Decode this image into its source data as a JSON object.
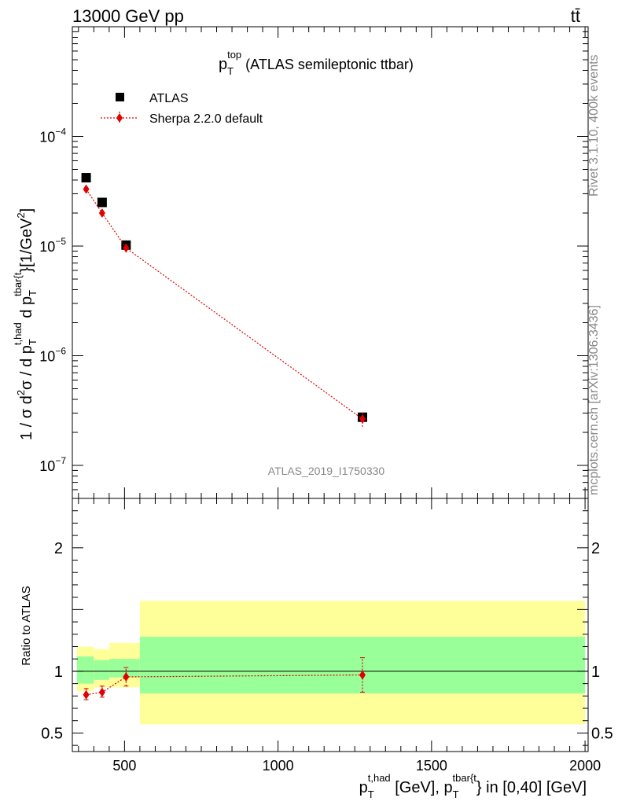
{
  "header": {
    "energy_label": "13000 GeV pp",
    "process_label": "tt̄"
  },
  "side_text": {
    "rivet": "Rivet 3.1.10,  400k events",
    "site": "mcplots.cern.ch [arXiv:1306.3436]"
  },
  "chart_data": [
    {
      "type": "scatter",
      "panel": "main",
      "title": {
        "main": "p",
        "sub": "T",
        "sup": "top",
        "suffix": " (ATLAS semileptonic ttbar)"
      },
      "ylabel": "1 / σ d²σ / d p_T^{t,had} d p_T^{tbar{t}} [1/GeV²]",
      "ylabel_parts": {
        "pre": "1 / σ d",
        "sup1": "2",
        "mid": "σ / d p",
        "sub2": "T",
        "sup2": "t,had",
        "mid2": " d p",
        "sub3": "T",
        "sup3": "tbar{t",
        "post": "}[1/GeV",
        "sup4": "2",
        "end": "]"
      },
      "yscale": "log",
      "ylim": [
        5e-08,
        0.001
      ],
      "xlim": [
        330,
        2010
      ],
      "y_ticks": [
        {
          "value": 1e-07,
          "base": "10",
          "exp": "−7"
        },
        {
          "value": 1e-06,
          "base": "10",
          "exp": "−6"
        },
        {
          "value": 1e-05,
          "base": "10",
          "exp": "−5"
        },
        {
          "value": 0.0001,
          "base": "10",
          "exp": "−4"
        }
      ],
      "watermark": "ATLAS_2019_I1750330",
      "legend_position": "top-left",
      "series": [
        {
          "name": "ATLAS",
          "marker": "square",
          "color": "#000000",
          "x": [
            375,
            427,
            505,
            1275
          ],
          "y": [
            4.2e-05,
            2.5e-05,
            1.02e-05,
            2.75e-07
          ]
        },
        {
          "name": "Sherpa 2.2.0 default",
          "marker": "diamond",
          "line": "dotted",
          "color": "#e00000",
          "x": [
            375,
            427,
            505,
            1275
          ],
          "y": [
            3.3e-05,
            2e-05,
            9.6e-06,
            2.65e-07
          ],
          "y_low": [
            3.1e-05,
            1.88e-05,
            8.9e-06,
            2.25e-07
          ],
          "y_high": [
            3.5e-05,
            2.12e-05,
            1.03e-05,
            3.05e-07
          ]
        }
      ]
    },
    {
      "type": "scatter",
      "panel": "ratio",
      "ylabel": "Ratio to ATLAS",
      "ylim": [
        0.35,
        2.4
      ],
      "y_ticks": [
        {
          "value": 0.5,
          "label": "0.5"
        },
        {
          "value": 1,
          "label": "1"
        },
        {
          "value": 2,
          "label": "2"
        }
      ],
      "x_ticks": [
        {
          "value": 500,
          "label": "500"
        },
        {
          "value": 1000,
          "label": "1000"
        },
        {
          "value": 1500,
          "label": "1500"
        },
        {
          "value": 2000,
          "label": "2000"
        }
      ],
      "xlabel_parts": {
        "p1": "p",
        "sub1": "T",
        "sup1": "t,had",
        "mid": " [GeV], p",
        "sub2": "T",
        "sup2": "tbar{t",
        "post": "} in [0,40] [GeV]"
      },
      "bins": [
        {
          "x_low": 345,
          "x_high": 400,
          "green_low": 0.9,
          "green_high": 1.12,
          "yellow_low": 0.84,
          "yellow_high": 1.2
        },
        {
          "x_low": 400,
          "x_high": 450,
          "green_low": 0.93,
          "green_high": 1.09,
          "yellow_low": 0.87,
          "yellow_high": 1.18
        },
        {
          "x_low": 450,
          "x_high": 550,
          "green_low": 0.95,
          "green_high": 1.1,
          "yellow_low": 0.87,
          "yellow_high": 1.23
        },
        {
          "x_low": 550,
          "x_high": 2000,
          "green_low": 0.82,
          "green_high": 1.28,
          "yellow_low": 0.57,
          "yellow_high": 1.57
        }
      ],
      "band_colors": {
        "inner": "#99ff99",
        "outer": "#ffff99"
      },
      "reference_line": 1,
      "series": [
        {
          "name": "Sherpa 2.2.0 default",
          "marker": "diamond",
          "color": "#e00000",
          "x": [
            375,
            427,
            505,
            1275
          ],
          "y": [
            0.81,
            0.83,
            0.955,
            0.97
          ],
          "y_low": [
            0.77,
            0.79,
            0.88,
            0.83
          ],
          "y_high": [
            0.86,
            0.88,
            1.03,
            1.11
          ]
        }
      ]
    }
  ]
}
